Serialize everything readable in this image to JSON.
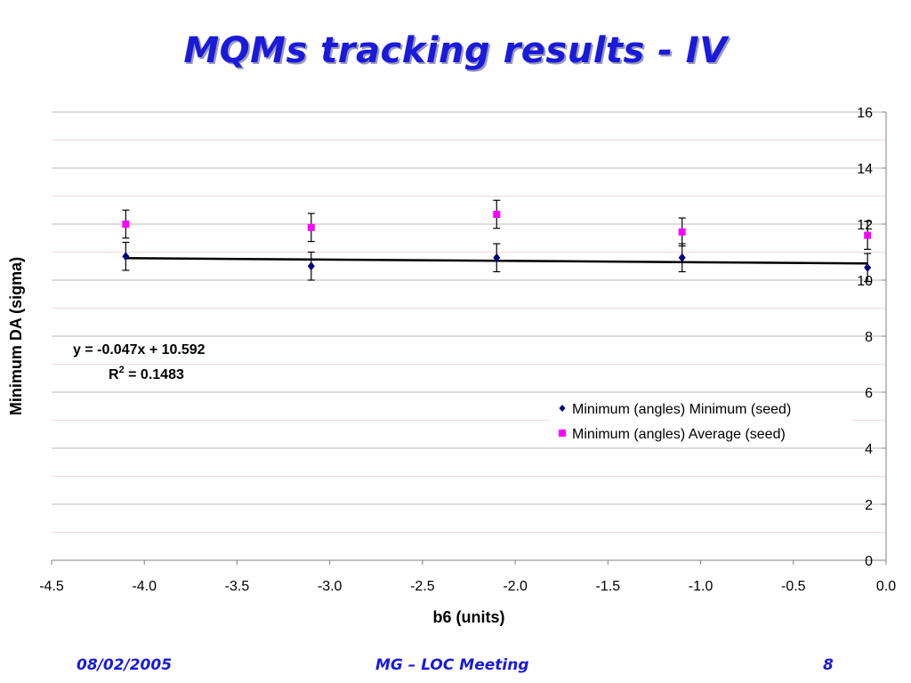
{
  "slide": {
    "title": "MQMs tracking results - IV"
  },
  "footer": {
    "date": "08/02/2005",
    "center": "MG – LOC Meeting",
    "page": "8"
  },
  "chart_data": {
    "type": "scatter",
    "title": "",
    "xlabel": "b6 (units)",
    "ylabel": "Minimum DA (sigma)",
    "xlim": [
      -4.5,
      0.0
    ],
    "ylim": [
      0,
      16
    ],
    "x_ticks": [
      "-4.5",
      "-4.0",
      "-3.5",
      "-3.0",
      "-2.5",
      "-2.0",
      "-1.5",
      "-1.0",
      "-0.5",
      "0.0"
    ],
    "y_ticks": [
      "0",
      "2",
      "4",
      "6",
      "8",
      "10",
      "12",
      "14",
      "16"
    ],
    "grid": true,
    "legend_position": "right-middle",
    "series": [
      {
        "name": "Minimum (angles) Minimum (seed)",
        "marker": "diamond",
        "color": "#000080",
        "x": [
          -4.1,
          -3.1,
          -2.1,
          -1.1,
          -0.1
        ],
        "y": [
          10.85,
          10.5,
          10.8,
          10.8,
          10.45
        ],
        "err": [
          0.5,
          0.5,
          0.5,
          0.5,
          0.5
        ]
      },
      {
        "name": "Minimum (angles) Average (seed)",
        "marker": "square",
        "color": "#ff00ff",
        "x": [
          -4.1,
          -3.1,
          -2.1,
          -1.1,
          -0.1
        ],
        "y": [
          12.0,
          11.88,
          12.35,
          11.72,
          11.6
        ],
        "err": [
          0.5,
          0.5,
          0.5,
          0.5,
          0.5
        ]
      }
    ],
    "trendline": {
      "series": "Minimum (angles) Minimum (seed)",
      "slope": -0.047,
      "intercept": 10.592,
      "equation": "y = -0.047x + 10.592",
      "r2_label": "R",
      "r2_sup": "2",
      "r2_value": " = 0.1483"
    }
  }
}
